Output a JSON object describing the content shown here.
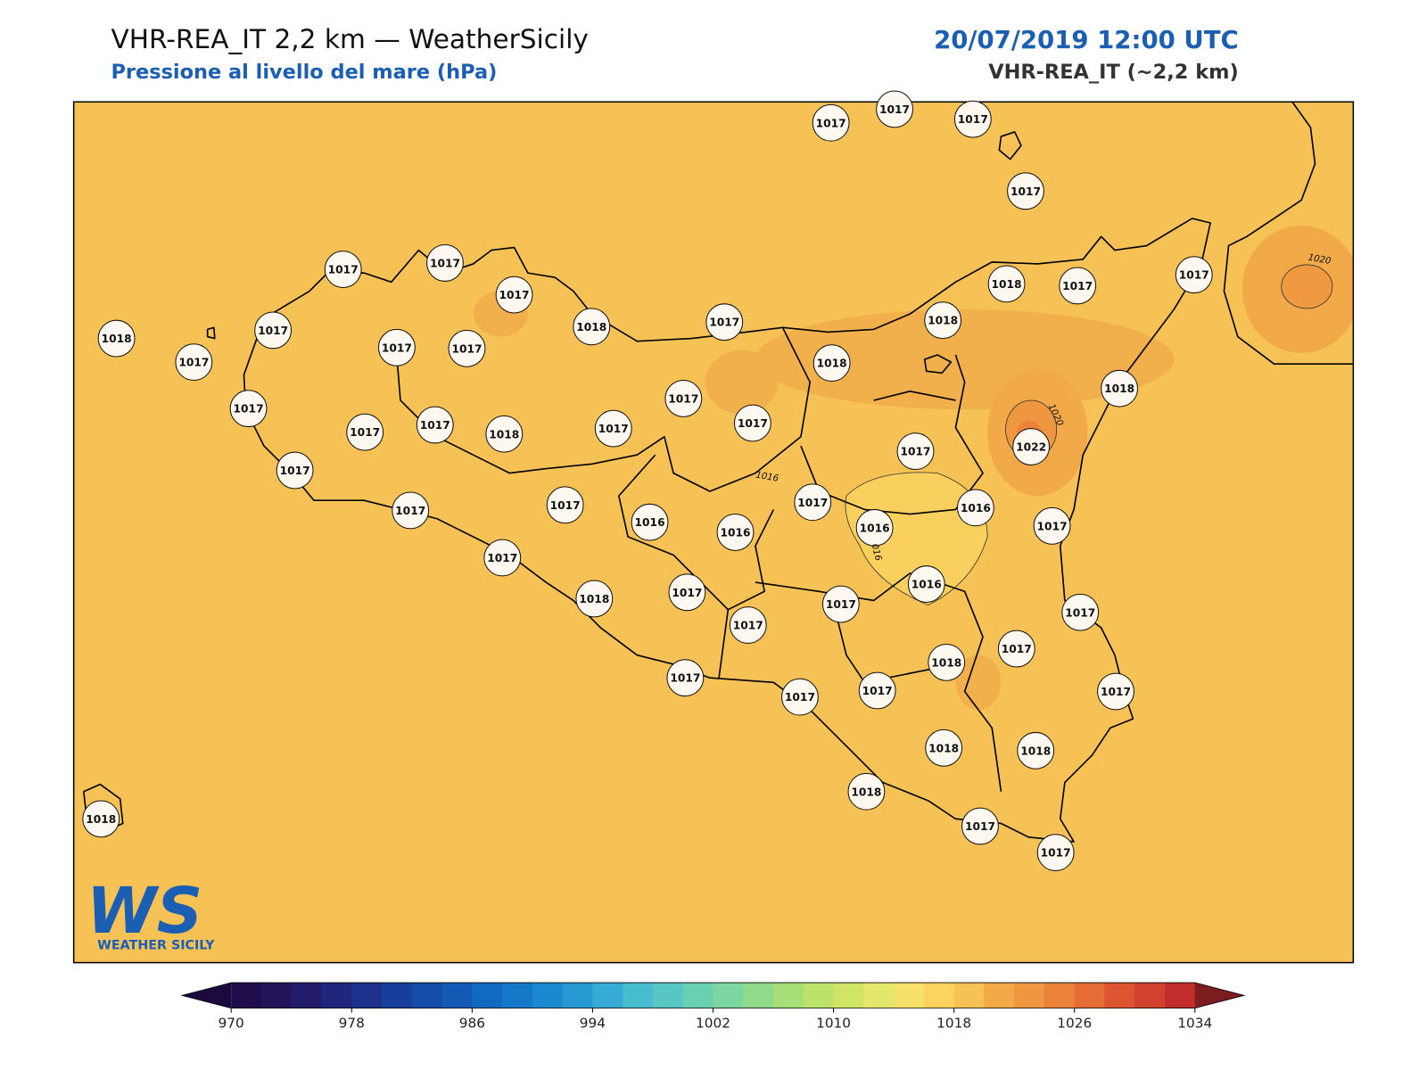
{
  "header": {
    "title": "VHR-REA_IT 2,2 km — WeatherSicily",
    "subtitle": "Pressione al livello del mare (hPa)",
    "date": "20/07/2019 12:00 UTC",
    "model": "VHR-REA_IT (~2,2 km)"
  },
  "stations": [
    1017,
    1017,
    1017,
    1017,
    1017,
    1017,
    1017,
    1018,
    1017,
    1017,
    1017,
    1017,
    1018,
    1017,
    1018,
    1017,
    1017,
    1018,
    1018,
    1018,
    1017,
    1017,
    1017,
    1018,
    1017,
    1017,
    1017,
    1017,
    1022,
    1017,
    1017,
    1017,
    1016,
    1016,
    1017,
    1016,
    1016,
    1017,
    1017,
    1018,
    1017,
    1017,
    1017,
    1016,
    1017,
    1018,
    1017,
    1017,
    1017,
    1017,
    1017,
    1018,
    1018,
    1018,
    1018,
    1017,
    1017
  ],
  "contour_labels": [
    "1020",
    "1020",
    "1016",
    "016"
  ],
  "colorbar": {
    "lim": [
      970,
      1034
    ],
    "ticks": [
      970,
      978,
      986,
      994,
      1002,
      1010,
      1018,
      1026,
      1034
    ],
    "colors": [
      "#1e0d4a",
      "#231459",
      "#221c6b",
      "#1f267c",
      "#1c318c",
      "#183e9c",
      "#164ca9",
      "#135ab5",
      "#1169c1",
      "#1479c9",
      "#1a89cf",
      "#2699d2",
      "#36abd4",
      "#48bccf",
      "#58c7c3",
      "#69d0b2",
      "#7cd69f",
      "#8fdb8a",
      "#a6df78",
      "#bde269",
      "#d0e566",
      "#e3e76c",
      "#f6e26a",
      "#fbd35e",
      "#f6c255",
      "#f2aa48",
      "#ef9640",
      "#eb823a",
      "#e56c34",
      "#dc5530",
      "#d0412e",
      "#c12c2c"
    ],
    "extend_colors": [
      "#1a0a3e",
      "#7d1d20"
    ]
  },
  "logo": {
    "mark": "WS",
    "text": "WEATHER SICILY"
  }
}
